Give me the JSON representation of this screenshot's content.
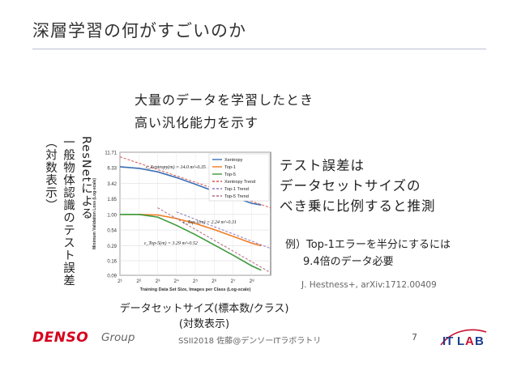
{
  "title": "深層学習の何がすごいのか",
  "lead_lines": [
    "大量のデータを学習したとき",
    "高い汎化能力を示す"
  ],
  "vertical_labels": [
    "ResNetによる",
    "一般物体認識のテスト誤差",
    "（対数表示）"
  ],
  "right_claim": [
    "テスト誤差は",
    "データセットサイズの",
    "べき乗に比例すると推測"
  ],
  "example_lines": [
    "例）Top-1エラーを半分にするには",
    "9.4倍のデータ必要"
  ],
  "citation": "J. Hestness+, arXiv:1712.00409",
  "axis_caption": [
    "データセットサイズ(標本数/クラス)",
    "(対数表示)"
  ],
  "footer": {
    "brand": "DENSO",
    "group": "Group",
    "text": "SSII2018 佐藤@デンソーITラボラトリ",
    "page": "7",
    "logo_text": "ITLAB"
  },
  "chart_data": {
    "type": "line",
    "xlabel": "Training Data Set Size, Images per Class (Log-scale)",
    "ylabel": "Minimum Validation Loss (Log-scale)",
    "x_scale": "log2",
    "y_scale": "log",
    "xlim": [
      1,
      9
    ],
    "ylim": [
      0.09,
      11.71
    ],
    "xticks": [
      "2¹",
      "2²",
      "2³",
      "2⁴",
      "2⁵",
      "2⁶",
      "2⁷",
      "2⁸"
    ],
    "yticks": [
      "11.71",
      "6.33",
      "3.42",
      "1.85",
      "1.00",
      "0.54",
      "0.29",
      "0.16",
      "0.09"
    ],
    "legend_position": "top-right",
    "grid": true,
    "colors": {
      "xentropy": "#3a6fb5",
      "top1": "#f07b22",
      "top5": "#3c9a3c",
      "xentropy_trend": "#d9534f",
      "top1_trend": "#8f79bf",
      "top5_trend": "#b4687d"
    },
    "series": [
      {
        "name": "Xentropy",
        "style": "solid",
        "x": [
          1,
          2,
          3,
          4,
          5,
          6,
          7,
          8,
          8.5
        ],
        "y": [
          6.6,
          6.2,
          5.4,
          4.3,
          3.3,
          2.5,
          2.0,
          1.55,
          1.45
        ]
      },
      {
        "name": "Top-1",
        "style": "solid",
        "x": [
          1,
          2,
          3,
          4,
          5,
          6,
          7,
          8,
          8.5
        ],
        "y": [
          1.0,
          1.0,
          0.98,
          0.85,
          0.7,
          0.55,
          0.42,
          0.32,
          0.29
        ]
      },
      {
        "name": "Top-5",
        "style": "solid",
        "x": [
          1,
          2,
          3,
          4,
          5,
          6,
          7,
          8,
          8.5
        ],
        "y": [
          1.0,
          1.0,
          0.9,
          0.65,
          0.45,
          0.3,
          0.2,
          0.13,
          0.11
        ]
      },
      {
        "name": "Xentropy Trend",
        "style": "dashed",
        "x": [
          1,
          9
        ],
        "y": [
          9.8,
          1.3
        ]
      },
      {
        "name": "Top-1 Trend",
        "style": "dashed",
        "x": [
          4,
          9
        ],
        "y": [
          1.1,
          0.26
        ]
      },
      {
        "name": "Top-5 Trend",
        "style": "dashed",
        "x": [
          3,
          9
        ],
        "y": [
          1.3,
          0.1
        ]
      }
    ],
    "annotations": [
      {
        "text": "ε_Xentropy(m) = 14.0 m^-0.35",
        "series": "Xentropy Trend"
      },
      {
        "text": "ε_Top-1(m) = 2.24 m^-0.31",
        "series": "Top-1 Trend"
      },
      {
        "text": "ε_Top-5(m) = 3.29 m^-0.52",
        "series": "Top-5 Trend"
      }
    ]
  }
}
